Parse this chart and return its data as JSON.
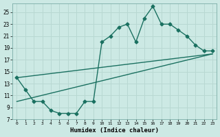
{
  "xlabel": "Humidex (Indice chaleur)",
  "background_color": "#cce9e4",
  "grid_color": "#b8d8d2",
  "line_color": "#1a7060",
  "xlim": [
    -0.5,
    23.5
  ],
  "ylim": [
    7,
    26.5
  ],
  "xticks": [
    0,
    1,
    2,
    3,
    4,
    5,
    6,
    7,
    8,
    9,
    10,
    11,
    12,
    13,
    14,
    15,
    16,
    17,
    18,
    19,
    20,
    21,
    22,
    23
  ],
  "yticks": [
    7,
    9,
    11,
    13,
    15,
    17,
    19,
    21,
    23,
    25
  ],
  "curve1_x": [
    0,
    1,
    2,
    3,
    4,
    5,
    6,
    7,
    8,
    9,
    10,
    11,
    12,
    13,
    14,
    15,
    16,
    17,
    18,
    19,
    20,
    21,
    22,
    23
  ],
  "curve1_y": [
    14,
    12,
    10,
    10,
    8.5,
    8,
    8,
    8,
    10,
    10,
    20,
    21,
    22.5,
    23,
    20,
    24,
    26,
    23,
    23,
    22,
    21,
    19.5,
    18.5,
    18.5
  ],
  "line1_x": [
    0,
    23
  ],
  "line1_y": [
    10,
    18
  ],
  "line2_x": [
    0,
    23
  ],
  "line2_y": [
    14,
    18
  ],
  "marker": "D",
  "markersize": 2.5,
  "linewidth": 1.0
}
